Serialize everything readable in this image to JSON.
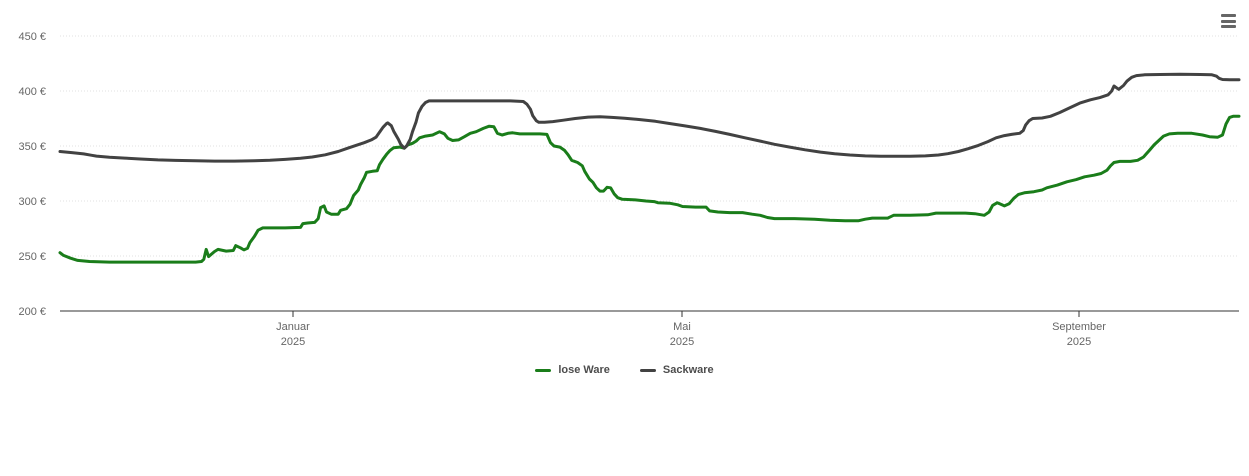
{
  "ui": {
    "menu_icon_color": "#666666",
    "background_color": "#ffffff",
    "grid_color": "#e0e0e0",
    "axis_color": "#333333",
    "label_color": "#666666"
  },
  "chart_data": {
    "type": "line",
    "title": "",
    "grid": "dotted-horizontal",
    "legend_position": "bottom-center",
    "y_axis": {
      "min": 200,
      "max": 450,
      "tick_interval": 50,
      "unit": "€",
      "values": [
        450,
        400,
        350,
        300,
        250,
        200
      ],
      "labels": [
        "450 €",
        "400 €",
        "350 €",
        "300 €",
        "250 €",
        "200 €"
      ]
    },
    "x_axis": {
      "ticks": [
        {
          "pos": 0.1976,
          "month": "Januar",
          "year": "2025"
        },
        {
          "pos": 0.5276,
          "month": "Mai",
          "year": "2025"
        },
        {
          "pos": 0.8643,
          "month": "September",
          "year": "2025"
        }
      ]
    },
    "point_format": [
      "x_fraction_of_axis",
      "price_eur"
    ],
    "series": [
      {
        "name": "lose Ware",
        "color": "#1a7d1a",
        "points": [
          [
            0,
            253
          ],
          [
            0.003,
            250.5
          ],
          [
            0.009,
            248
          ],
          [
            0.015,
            246
          ],
          [
            0.025,
            245
          ],
          [
            0.042,
            244.5
          ],
          [
            0.076,
            244.5
          ],
          [
            0.115,
            244.5
          ],
          [
            0.12,
            245
          ],
          [
            0.122,
            247
          ],
          [
            0.124,
            256
          ],
          [
            0.126,
            249.5
          ],
          [
            0.131,
            254
          ],
          [
            0.134,
            256
          ],
          [
            0.141,
            254.5
          ],
          [
            0.147,
            255
          ],
          [
            0.149,
            259.5
          ],
          [
            0.153,
            257.5
          ],
          [
            0.156,
            255.5
          ],
          [
            0.159,
            257
          ],
          [
            0.161,
            262
          ],
          [
            0.165,
            268
          ],
          [
            0.168,
            273.5
          ],
          [
            0.172,
            275.5
          ],
          [
            0.191,
            275.5
          ],
          [
            0.204,
            276
          ],
          [
            0.206,
            279.5
          ],
          [
            0.21,
            280
          ],
          [
            0.216,
            280.5
          ],
          [
            0.219,
            284
          ],
          [
            0.221,
            294
          ],
          [
            0.224,
            295.5
          ],
          [
            0.226,
            290
          ],
          [
            0.23,
            288
          ],
          [
            0.236,
            288
          ],
          [
            0.238,
            291.5
          ],
          [
            0.243,
            293
          ],
          [
            0.246,
            297
          ],
          [
            0.249,
            305
          ],
          [
            0.253,
            310
          ],
          [
            0.255,
            315
          ],
          [
            0.258,
            321
          ],
          [
            0.26,
            326
          ],
          [
            0.265,
            327
          ],
          [
            0.269,
            327.5
          ],
          [
            0.271,
            333
          ],
          [
            0.274,
            338
          ],
          [
            0.277,
            342.5
          ],
          [
            0.28,
            346
          ],
          [
            0.283,
            348.5
          ],
          [
            0.288,
            349
          ],
          [
            0.292,
            348
          ],
          [
            0.295,
            351
          ],
          [
            0.299,
            352.5
          ],
          [
            0.302,
            354.5
          ],
          [
            0.305,
            357.5
          ],
          [
            0.31,
            359
          ],
          [
            0.316,
            360
          ],
          [
            0.322,
            363
          ],
          [
            0.326,
            361
          ],
          [
            0.329,
            357
          ],
          [
            0.333,
            355
          ],
          [
            0.338,
            355.5
          ],
          [
            0.343,
            358.5
          ],
          [
            0.348,
            361.5
          ],
          [
            0.353,
            363
          ],
          [
            0.359,
            366
          ],
          [
            0.364,
            368
          ],
          [
            0.368,
            367.5
          ],
          [
            0.371,
            361.5
          ],
          [
            0.375,
            360
          ],
          [
            0.38,
            361.5
          ],
          [
            0.384,
            362
          ],
          [
            0.39,
            361
          ],
          [
            0.399,
            361
          ],
          [
            0.407,
            361
          ],
          [
            0.413,
            360.5
          ],
          [
            0.416,
            353
          ],
          [
            0.419,
            350
          ],
          [
            0.424,
            349
          ],
          [
            0.428,
            346
          ],
          [
            0.431,
            342
          ],
          [
            0.434,
            337
          ],
          [
            0.439,
            335
          ],
          [
            0.443,
            332
          ],
          [
            0.445,
            327
          ],
          [
            0.449,
            320
          ],
          [
            0.452,
            317
          ],
          [
            0.455,
            312
          ],
          [
            0.458,
            309
          ],
          [
            0.461,
            309
          ],
          [
            0.464,
            312.5
          ],
          [
            0.467,
            312
          ],
          [
            0.47,
            306.5
          ],
          [
            0.473,
            303
          ],
          [
            0.477,
            301.5
          ],
          [
            0.488,
            301
          ],
          [
            0.497,
            300
          ],
          [
            0.504,
            299.5
          ],
          [
            0.507,
            298.5
          ],
          [
            0.517,
            298
          ],
          [
            0.524,
            296.5
          ],
          [
            0.528,
            295
          ],
          [
            0.539,
            294.5
          ],
          [
            0.548,
            294.5
          ],
          [
            0.551,
            291
          ],
          [
            0.558,
            290
          ],
          [
            0.568,
            289.5
          ],
          [
            0.579,
            289.5
          ],
          [
            0.587,
            288
          ],
          [
            0.594,
            287
          ],
          [
            0.6,
            285
          ],
          [
            0.606,
            284
          ],
          [
            0.623,
            284
          ],
          [
            0.64,
            283.5
          ],
          [
            0.653,
            282.5
          ],
          [
            0.666,
            282
          ],
          [
            0.677,
            282
          ],
          [
            0.683,
            283.5
          ],
          [
            0.689,
            284.5
          ],
          [
            0.702,
            284.5
          ],
          [
            0.707,
            287
          ],
          [
            0.721,
            287
          ],
          [
            0.736,
            287.5
          ],
          [
            0.743,
            289
          ],
          [
            0.755,
            289
          ],
          [
            0.768,
            289
          ],
          [
            0.776,
            288.5
          ],
          [
            0.784,
            287
          ],
          [
            0.788,
            290
          ],
          [
            0.791,
            296
          ],
          [
            0.795,
            298.5
          ],
          [
            0.798,
            297
          ],
          [
            0.801,
            295.5
          ],
          [
            0.805,
            297.5
          ],
          [
            0.809,
            302.5
          ],
          [
            0.813,
            306
          ],
          [
            0.818,
            307.5
          ],
          [
            0.826,
            308.5
          ],
          [
            0.833,
            310
          ],
          [
            0.837,
            312
          ],
          [
            0.846,
            314.5
          ],
          [
            0.854,
            317.5
          ],
          [
            0.862,
            319.5
          ],
          [
            0.869,
            322
          ],
          [
            0.877,
            323.5
          ],
          [
            0.883,
            325
          ],
          [
            0.888,
            328
          ],
          [
            0.891,
            332
          ],
          [
            0.894,
            335
          ],
          [
            0.899,
            336
          ],
          [
            0.908,
            336
          ],
          [
            0.914,
            337
          ],
          [
            0.919,
            340
          ],
          [
            0.924,
            346
          ],
          [
            0.928,
            351
          ],
          [
            0.932,
            355
          ],
          [
            0.936,
            359
          ],
          [
            0.941,
            361
          ],
          [
            0.948,
            361.5
          ],
          [
            0.96,
            361.5
          ],
          [
            0.969,
            360
          ],
          [
            0.975,
            358.5
          ],
          [
            0.982,
            358
          ],
          [
            0.986,
            360
          ],
          [
            0.989,
            370
          ],
          [
            0.992,
            376
          ],
          [
            0.995,
            377
          ],
          [
            1,
            377
          ]
        ]
      },
      {
        "name": "Sackware",
        "color": "#424242",
        "points": [
          [
            0,
            345
          ],
          [
            0.01,
            344
          ],
          [
            0.02,
            342.8
          ],
          [
            0.027,
            341.5
          ],
          [
            0.031,
            340.8
          ],
          [
            0.042,
            339.8
          ],
          [
            0.055,
            339
          ],
          [
            0.068,
            338.2
          ],
          [
            0.083,
            337.4
          ],
          [
            0.098,
            336.9
          ],
          [
            0.115,
            336.5
          ],
          [
            0.131,
            336.3
          ],
          [
            0.148,
            336.3
          ],
          [
            0.165,
            336.6
          ],
          [
            0.178,
            337
          ],
          [
            0.191,
            337.8
          ],
          [
            0.204,
            338.8
          ],
          [
            0.214,
            340
          ],
          [
            0.225,
            342
          ],
          [
            0.236,
            345
          ],
          [
            0.244,
            348
          ],
          [
            0.251,
            350.5
          ],
          [
            0.258,
            353
          ],
          [
            0.264,
            355.5
          ],
          [
            0.268,
            358
          ],
          [
            0.271,
            362.5
          ],
          [
            0.274,
            367
          ],
          [
            0.277,
            370.5
          ],
          [
            0.278,
            371
          ],
          [
            0.281,
            368.5
          ],
          [
            0.283,
            363.5
          ],
          [
            0.287,
            356
          ],
          [
            0.289,
            351.5
          ],
          [
            0.292,
            348
          ],
          [
            0.294,
            350
          ],
          [
            0.297,
            356
          ],
          [
            0.299,
            363
          ],
          [
            0.302,
            372
          ],
          [
            0.304,
            380
          ],
          [
            0.307,
            386
          ],
          [
            0.31,
            389.5
          ],
          [
            0.313,
            391
          ],
          [
            0.331,
            391
          ],
          [
            0.356,
            391
          ],
          [
            0.382,
            391
          ],
          [
            0.393,
            390.5
          ],
          [
            0.396,
            388
          ],
          [
            0.399,
            383.5
          ],
          [
            0.401,
            377.5
          ],
          [
            0.404,
            373
          ],
          [
            0.406,
            371.5
          ],
          [
            0.411,
            371.5
          ],
          [
            0.418,
            372.2
          ],
          [
            0.427,
            373.5
          ],
          [
            0.437,
            375
          ],
          [
            0.448,
            376.3
          ],
          [
            0.458,
            376.5
          ],
          [
            0.468,
            376
          ],
          [
            0.479,
            375.3
          ],
          [
            0.492,
            374
          ],
          [
            0.505,
            372.5
          ],
          [
            0.517,
            370.5
          ],
          [
            0.53,
            368.3
          ],
          [
            0.543,
            366
          ],
          [
            0.556,
            363.3
          ],
          [
            0.568,
            360.5
          ],
          [
            0.581,
            357.5
          ],
          [
            0.594,
            354.5
          ],
          [
            0.606,
            351.5
          ],
          [
            0.619,
            349
          ],
          [
            0.632,
            346.5
          ],
          [
            0.645,
            344.5
          ],
          [
            0.657,
            343
          ],
          [
            0.67,
            341.8
          ],
          [
            0.683,
            341
          ],
          [
            0.696,
            340.7
          ],
          [
            0.708,
            340.6
          ],
          [
            0.721,
            340.7
          ],
          [
            0.734,
            341
          ],
          [
            0.745,
            341.8
          ],
          [
            0.753,
            343
          ],
          [
            0.762,
            345
          ],
          [
            0.77,
            347.5
          ],
          [
            0.779,
            350.5
          ],
          [
            0.787,
            354
          ],
          [
            0.794,
            357.5
          ],
          [
            0.801,
            359.5
          ],
          [
            0.807,
            360.5
          ],
          [
            0.814,
            361.5
          ],
          [
            0.817,
            364
          ],
          [
            0.819,
            369
          ],
          [
            0.822,
            373
          ],
          [
            0.825,
            375
          ],
          [
            0.833,
            375.5
          ],
          [
            0.84,
            377
          ],
          [
            0.848,
            380.5
          ],
          [
            0.857,
            385
          ],
          [
            0.865,
            389
          ],
          [
            0.874,
            392
          ],
          [
            0.882,
            394
          ],
          [
            0.889,
            396.5
          ],
          [
            0.892,
            400
          ],
          [
            0.894,
            404.5
          ],
          [
            0.896,
            403
          ],
          [
            0.898,
            401.5
          ],
          [
            0.902,
            405
          ],
          [
            0.905,
            409
          ],
          [
            0.909,
            412.5
          ],
          [
            0.913,
            414
          ],
          [
            0.92,
            414.7
          ],
          [
            0.933,
            415
          ],
          [
            0.95,
            415.3
          ],
          [
            0.967,
            415
          ],
          [
            0.977,
            414.7
          ],
          [
            0.981,
            413.5
          ],
          [
            0.983,
            411.5
          ],
          [
            0.986,
            410.5
          ],
          [
            0.992,
            410.3
          ],
          [
            1,
            410.3
          ]
        ]
      }
    ]
  },
  "legend": {
    "items": [
      {
        "label": "lose Ware",
        "swatch": "line-swatch-green"
      },
      {
        "label": "Sackware",
        "swatch": "line-swatch-gray"
      }
    ]
  }
}
